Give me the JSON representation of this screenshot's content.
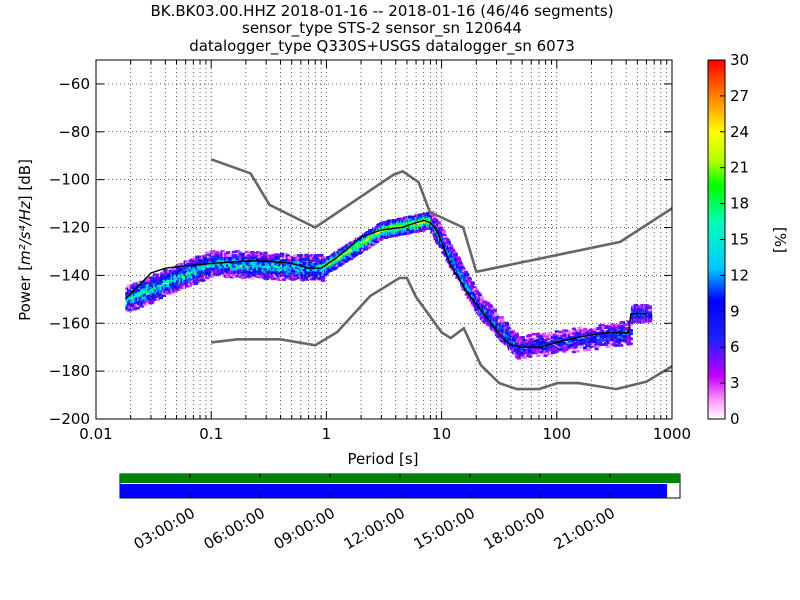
{
  "chart_data": {
    "type": "heatmap",
    "title_lines": [
      "BK.BK03.00.HHZ   2018-01-16 -- 2018-01-16  (46/46 segments)",
      "sensor_type STS-2 sensor_sn 120644",
      "datalogger_type Q330S+USGS datalogger_sn 6073"
    ],
    "xlabel": "Period [s]",
    "ylabel_prefix": "Power [",
    "ylabel_unit": "m²/s⁴/Hz",
    "ylabel_suffix": "] [dB]",
    "xscale": "log",
    "xlim": [
      0.01,
      1000
    ],
    "ylim": [
      -200,
      -50
    ],
    "xticks": [
      {
        "v": 0.01,
        "label": "0.01"
      },
      {
        "v": 0.1,
        "label": "0.1"
      },
      {
        "v": 1,
        "label": "1"
      },
      {
        "v": 10,
        "label": "10"
      },
      {
        "v": 100,
        "label": "100"
      },
      {
        "v": 1000,
        "label": "1000"
      }
    ],
    "yticks": [
      {
        "v": -200,
        "label": "−200"
      },
      {
        "v": -180,
        "label": "−180"
      },
      {
        "v": -160,
        "label": "−160"
      },
      {
        "v": -140,
        "label": "−140"
      },
      {
        "v": -120,
        "label": "−120"
      },
      {
        "v": -100,
        "label": "−100"
      },
      {
        "v": -80,
        "label": "−80"
      },
      {
        "v": -60,
        "label": "−60"
      }
    ],
    "grid": "dotted",
    "colorbar": {
      "label": "[%]",
      "min": 0,
      "max": 30,
      "ticks": [
        {
          "v": 0,
          "label": "0"
        },
        {
          "v": 3,
          "label": "3"
        },
        {
          "v": 6,
          "label": "6"
        },
        {
          "v": 9,
          "label": "9"
        },
        {
          "v": 12,
          "label": "12"
        },
        {
          "v": 15,
          "label": "15"
        },
        {
          "v": 18,
          "label": "18"
        },
        {
          "v": 21,
          "label": "21"
        },
        {
          "v": 24,
          "label": "24"
        },
        {
          "v": 27,
          "label": "27"
        },
        {
          "v": 30,
          "label": "30"
        }
      ]
    },
    "nhnm": [
      [
        0.1,
        -91.5
      ],
      [
        0.22,
        -97.4
      ],
      [
        0.32,
        -110.5
      ],
      [
        0.8,
        -120
      ],
      [
        3.8,
        -98
      ],
      [
        4.6,
        -96.5
      ],
      [
        6.3,
        -101
      ],
      [
        7.9,
        -113.5
      ],
      [
        15.4,
        -120
      ],
      [
        20,
        -138.5
      ],
      [
        354.8,
        -126
      ],
      [
        1000,
        -112
      ]
    ],
    "nlnm": [
      [
        0.1,
        -168
      ],
      [
        0.17,
        -166.7
      ],
      [
        0.4,
        -166.7
      ],
      [
        0.8,
        -169.2
      ],
      [
        1.24,
        -163.7
      ],
      [
        2.4,
        -148.6
      ],
      [
        4.3,
        -141.1
      ],
      [
        5,
        -141.1
      ],
      [
        6,
        -149
      ],
      [
        10,
        -163.8
      ],
      [
        12,
        -166.2
      ],
      [
        15.6,
        -162.1
      ],
      [
        21.9,
        -177.5
      ],
      [
        31.6,
        -185
      ],
      [
        45,
        -187.5
      ],
      [
        70,
        -187.5
      ],
      [
        101,
        -185
      ],
      [
        154,
        -185
      ],
      [
        328,
        -187.5
      ],
      [
        600,
        -184.4
      ],
      [
        1000,
        -178
      ]
    ],
    "mode_line": [
      [
        0.018,
        -150
      ],
      [
        0.025,
        -143
      ],
      [
        0.03,
        -139
      ],
      [
        0.04,
        -137
      ],
      [
        0.06,
        -136
      ],
      [
        0.1,
        -135
      ],
      [
        0.2,
        -134
      ],
      [
        0.3,
        -134
      ],
      [
        0.5,
        -135
      ],
      [
        0.7,
        -137
      ],
      [
        0.9,
        -137
      ],
      [
        1.2,
        -133
      ],
      [
        1.6,
        -128
      ],
      [
        2,
        -124
      ],
      [
        3,
        -121
      ],
      [
        4.5,
        -120
      ],
      [
        6,
        -118
      ],
      [
        7,
        -117
      ],
      [
        8,
        -118
      ],
      [
        9,
        -121
      ],
      [
        10,
        -126
      ],
      [
        11,
        -131
      ],
      [
        12,
        -136
      ],
      [
        14,
        -141
      ],
      [
        16,
        -146
      ],
      [
        20,
        -152
      ],
      [
        25,
        -158
      ],
      [
        30,
        -163
      ],
      [
        35,
        -167
      ],
      [
        40,
        -169
      ],
      [
        50,
        -170
      ],
      [
        70,
        -170
      ],
      [
        100,
        -168
      ],
      [
        150,
        -166
      ],
      [
        250,
        -164
      ],
      [
        350,
        -164
      ],
      [
        420,
        -164
      ],
      [
        440,
        -156
      ],
      [
        600,
        -156
      ]
    ],
    "density": [
      {
        "p0": 0.018,
        "p1": 0.1,
        "c0": -150,
        "c1": -135,
        "w": 5,
        "d": 14,
        "spread": 0.6
      },
      {
        "p0": 0.1,
        "p1": 0.9,
        "c0": -135,
        "c1": -137,
        "w": 5,
        "d": 13,
        "spread": 0.5
      },
      {
        "p0": 0.9,
        "p1": 3,
        "c0": -137,
        "c1": -121,
        "w": 3,
        "d": 20,
        "spread": 0.4
      },
      {
        "p0": 3,
        "p1": 8,
        "c0": -121,
        "c1": -117,
        "w": 3,
        "d": 22,
        "spread": 0.4
      },
      {
        "p0": 8,
        "p1": 20,
        "c0": -118,
        "c1": -152,
        "w": 4,
        "d": 12,
        "spread": 0.8
      },
      {
        "p0": 20,
        "p1": 45,
        "c0": -152,
        "c1": -170,
        "w": 4,
        "d": 10,
        "spread": 0.9
      },
      {
        "p0": 45,
        "p1": 420,
        "c0": -170,
        "c1": -164,
        "w": 4,
        "d": 9,
        "spread": 0.9
      },
      {
        "p0": 440,
        "p1": 620,
        "c0": -156,
        "c1": -156,
        "w": 3,
        "d": 10,
        "spread": 0.6
      }
    ],
    "timeline": {
      "ticks": [
        "03:00:00",
        "06:00:00",
        "09:00:00",
        "12:00:00",
        "15:00:00",
        "18:00:00",
        "21:00:00"
      ],
      "top_color": "#008000",
      "bottom_color": "#0000ff",
      "coverage_fraction": 0.977
    }
  }
}
